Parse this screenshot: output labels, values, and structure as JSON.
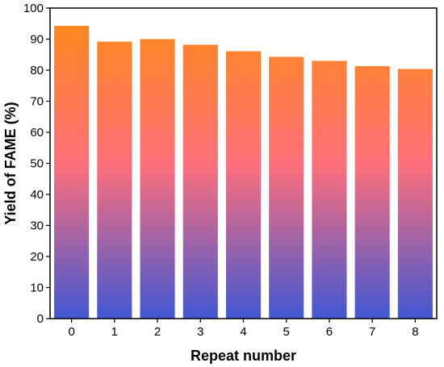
{
  "chart_data": {
    "type": "bar",
    "categories": [
      "0",
      "1",
      "2",
      "3",
      "4",
      "5",
      "6",
      "7",
      "8"
    ],
    "values": [
      94.3,
      89.2,
      90.0,
      88.2,
      86.1,
      84.3,
      83.0,
      81.3,
      80.4
    ],
    "xlabel": "Repeat number",
    "ylabel": "Yield of FAME (%)",
    "ylim": [
      0,
      100
    ],
    "yticks": [
      0,
      10,
      20,
      30,
      40,
      50,
      60,
      70,
      80,
      90,
      100
    ],
    "grid": false,
    "legend": "none",
    "bar_gradient": {
      "top_color": "#FF8A12",
      "middle_color": "#FF6F7A",
      "bottom_color": "#4257D3"
    }
  }
}
